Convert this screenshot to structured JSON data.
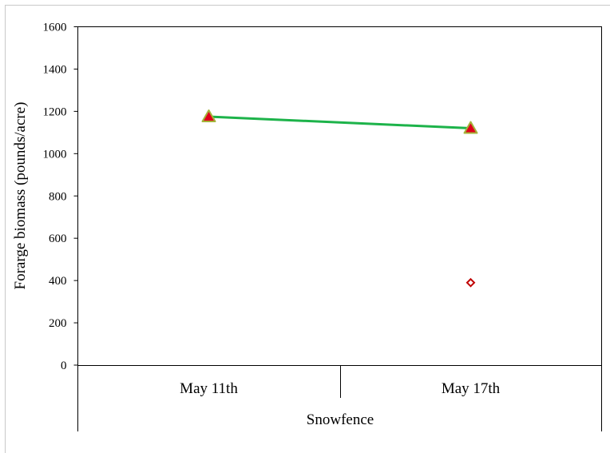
{
  "chart_data": {
    "type": "line",
    "categories": [
      "May 11th",
      "May 17th"
    ],
    "group_label": "Snowfence",
    "ylabel": "Forarge biomass (pounds/acre)",
    "xlabel": "",
    "ylim": [
      0,
      1600
    ],
    "yticks": [
      0,
      200,
      400,
      600,
      800,
      1000,
      1200,
      1400,
      1600
    ],
    "grid": false,
    "legend": "none",
    "series": [
      {
        "values": [
          1175,
          1120
        ],
        "line_color": "#1db34a",
        "marker": "triangle",
        "marker_fill": "#e0001b",
        "marker_edge": "#a4b33a"
      },
      {
        "values": [
          null,
          390
        ],
        "line_color": null,
        "marker": "diamond",
        "marker_fill": "#ffffff",
        "marker_edge": "#c00000"
      }
    ]
  }
}
